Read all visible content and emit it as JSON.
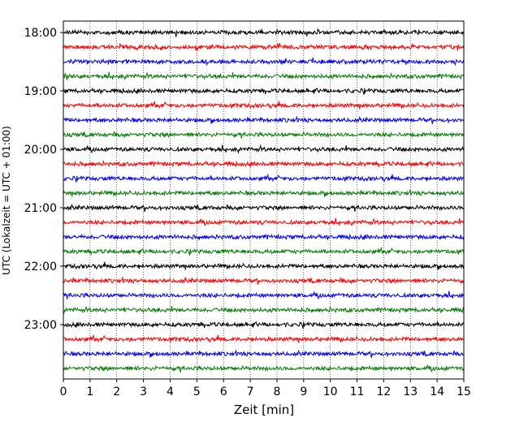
{
  "chart_data": {
    "type": "line",
    "title": "",
    "xlabel": "Zeit  [min]",
    "ylabel": "UTC (Lokalzeit = UTC + 01:00)",
    "xlim": [
      0,
      15
    ],
    "x_ticks": [
      "0",
      "1",
      "2",
      "3",
      "4",
      "5",
      "6",
      "7",
      "8",
      "9",
      "10",
      "11",
      "12",
      "13",
      "14",
      "15"
    ],
    "y_tick_labels": [
      "18:00",
      "19:00",
      "20:00",
      "21:00",
      "22:00",
      "23:00"
    ],
    "trace_start_times": [
      "18:00",
      "18:15",
      "18:30",
      "18:45",
      "19:00",
      "19:15",
      "19:30",
      "19:45",
      "20:00",
      "20:15",
      "20:30",
      "20:45",
      "21:00",
      "21:15",
      "21:30",
      "21:45",
      "22:00",
      "22:15",
      "22:30",
      "22:45",
      "23:00",
      "23:15",
      "23:30",
      "23:45"
    ],
    "trace_colors": [
      "#000000",
      "#ff0000",
      "#0000ff",
      "#008000"
    ],
    "grid": "vertical dotted"
  }
}
